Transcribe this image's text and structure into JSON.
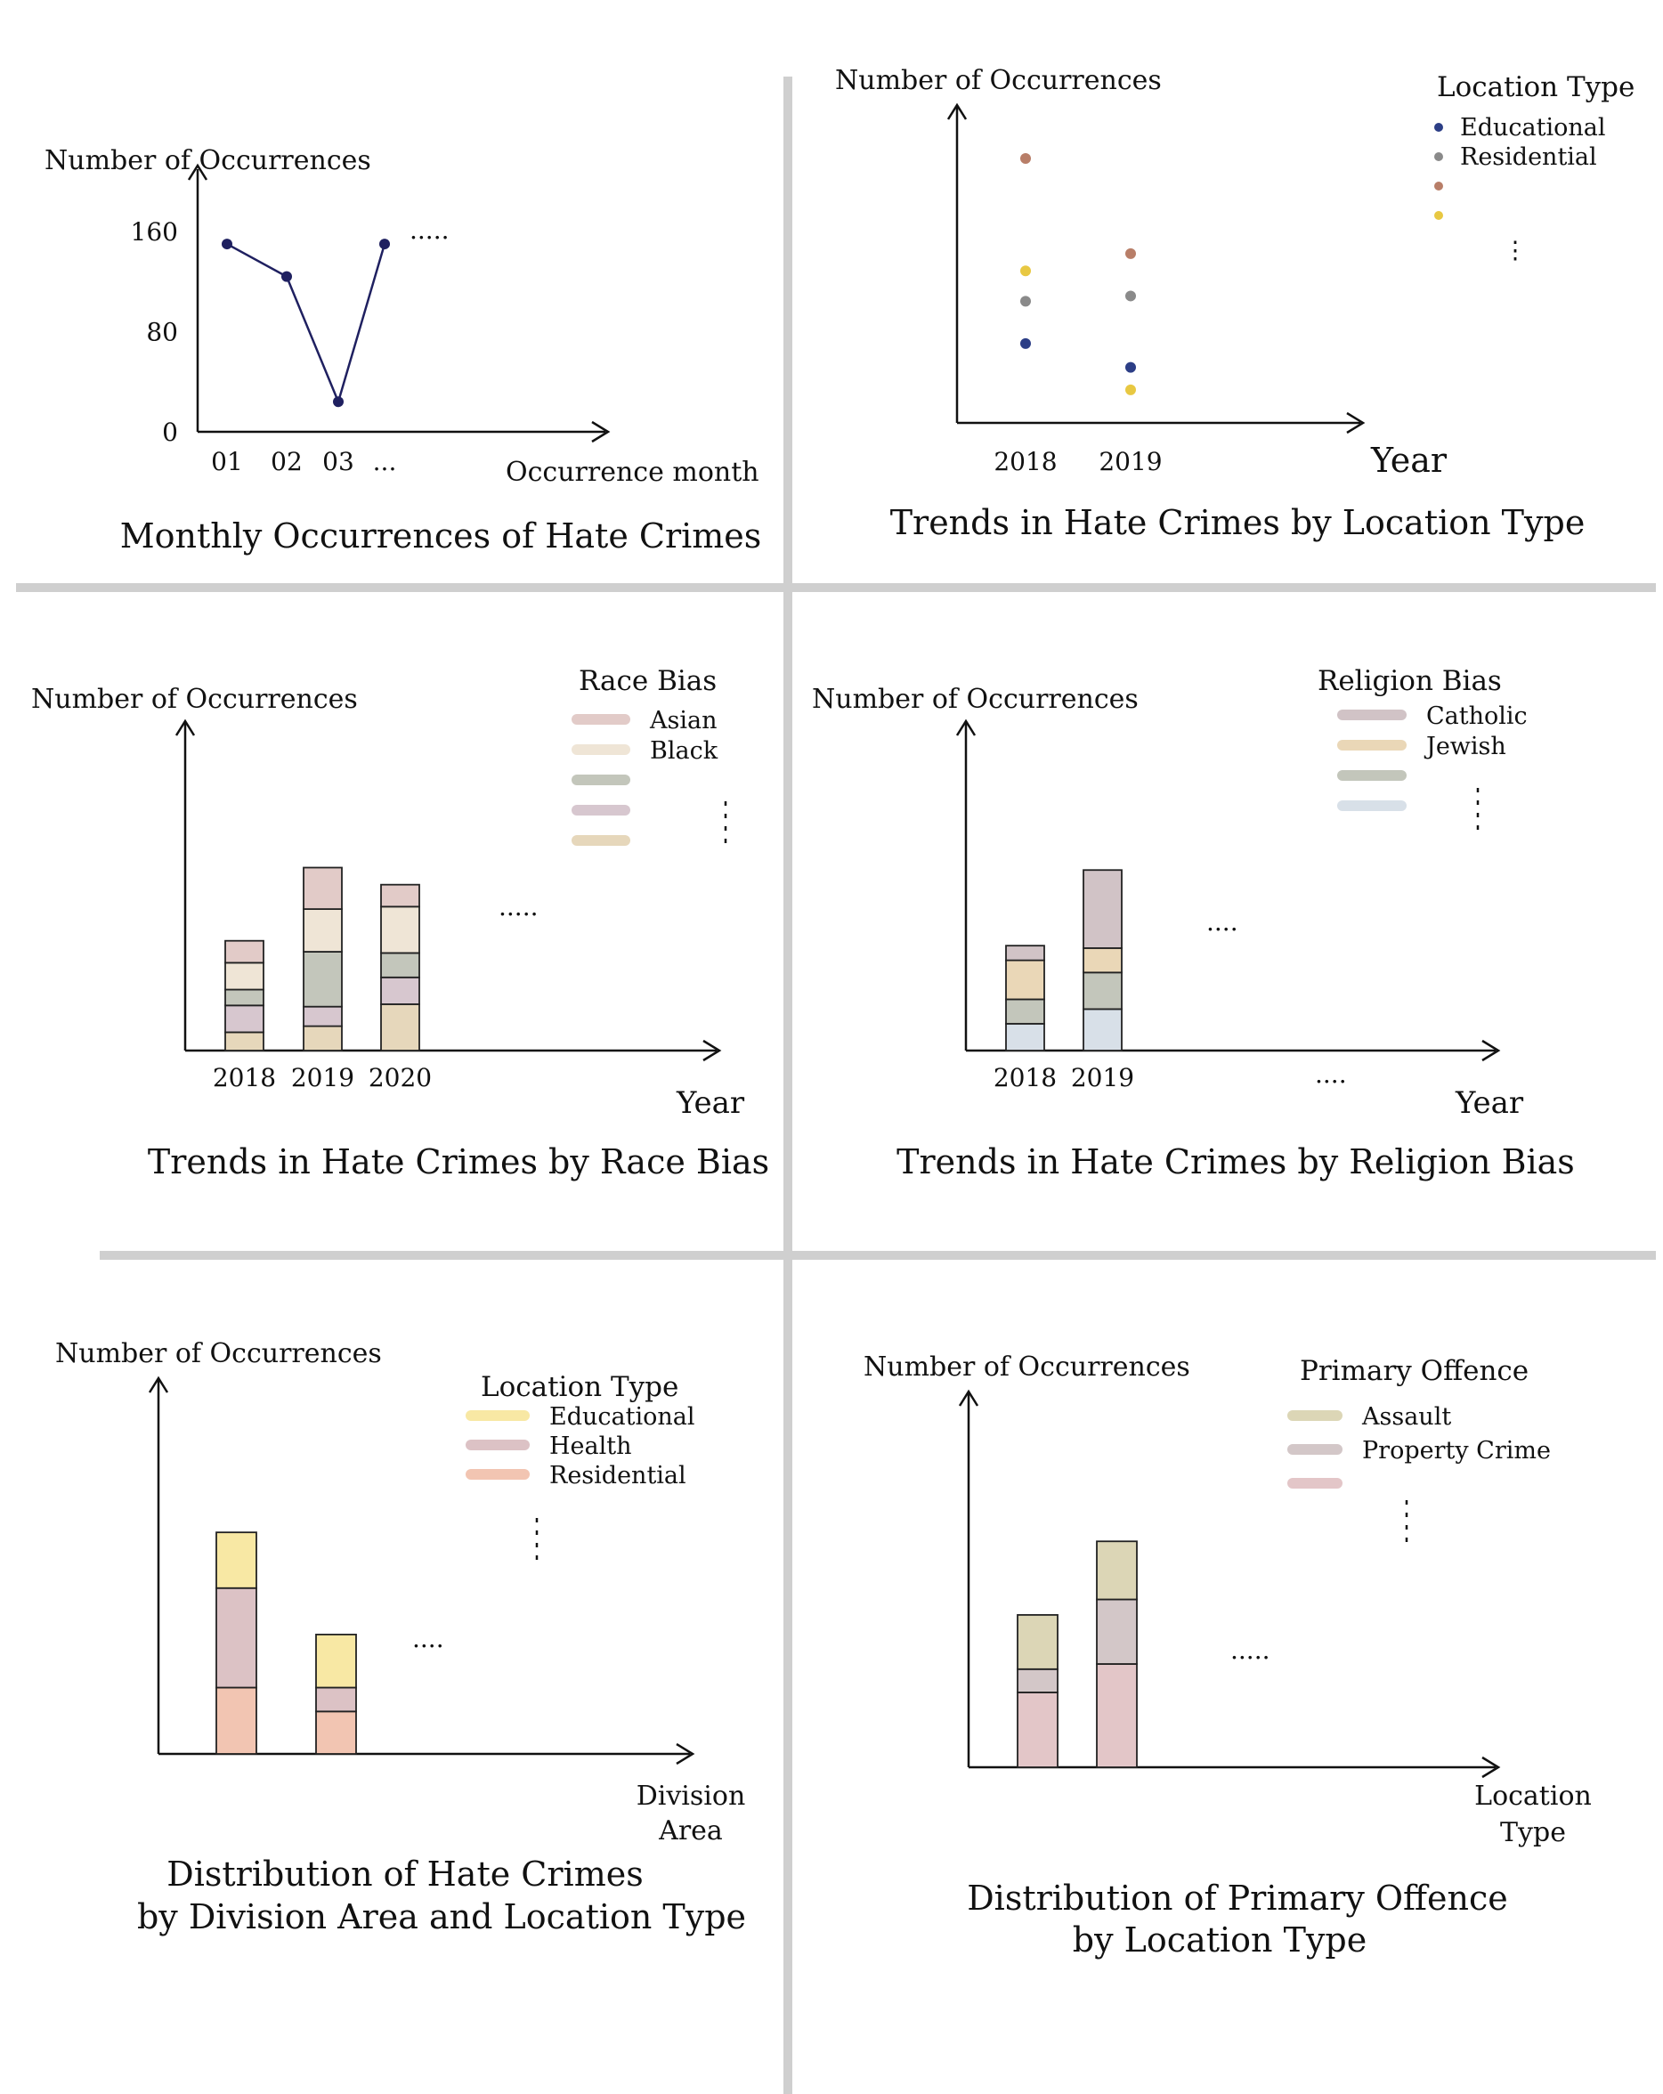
{
  "chart_data": [
    {
      "type": "line",
      "title": "Monthly Occurrences of Hate Crimes",
      "xlabel": "Occurrence month",
      "ylabel": "Number of Occurrences",
      "x": [
        "01",
        "02",
        "03",
        "..."
      ],
      "values": [
        150,
        124,
        24,
        150
      ],
      "yticks": [
        "0",
        "80",
        "160"
      ],
      "ylim": [
        0,
        180
      ],
      "color": "#1f2060",
      "continuation": "....."
    },
    {
      "type": "scatter",
      "title": "Trends in Hate Crimes by Location Type",
      "xlabel": "Year",
      "ylabel": "Number of Occurrences",
      "legend_title": "Location Type",
      "legend_position": "top-right",
      "categories": [
        "2018",
        "2019"
      ],
      "series": [
        {
          "name": "Educational",
          "color": "#2c3e86",
          "values": [
            60,
            42
          ]
        },
        {
          "name": "Residential",
          "color": "#8a8a8a",
          "values": [
            92,
            96
          ]
        },
        {
          "name": "",
          "color": "#b87e68",
          "values": [
            200,
            128
          ]
        },
        {
          "name": "",
          "color": "#e8c842",
          "values": [
            115,
            25
          ]
        }
      ],
      "ylim": [
        0,
        250
      ],
      "legend_more": "⋮"
    },
    {
      "type": "bar",
      "stacked": true,
      "title": "Trends in Hate Crimes by Race Bias",
      "xlabel": "Year",
      "ylabel": "Number of Occurrences",
      "legend_title": "Race Bias",
      "legend_position": "top-right",
      "categories": [
        "2018",
        "2019",
        "2020"
      ],
      "series": [
        {
          "name": "",
          "color": "#e6d7bb",
          "values": [
            15,
            20,
            38
          ]
        },
        {
          "name": "",
          "color": "#d7c7cf",
          "values": [
            22,
            16,
            22
          ]
        },
        {
          "name": "",
          "color": "#c3c6bb",
          "values": [
            13,
            45,
            20
          ]
        },
        {
          "name": "Black",
          "color": "#efe5d6",
          "values": [
            22,
            35,
            38
          ]
        },
        {
          "name": "Asian",
          "color": "#e2cbc8",
          "values": [
            18,
            34,
            18
          ]
        }
      ],
      "legend_order": [
        "Asian",
        "Black",
        "",
        "",
        ""
      ],
      "ylim": [
        0,
        160
      ],
      "continuation": "....."
    },
    {
      "type": "bar",
      "stacked": true,
      "title": "Trends in Hate Crimes by Religion Bias",
      "xlabel": "Year",
      "ylabel": "Number of Occurrences",
      "legend_title": "Religion Bias",
      "legend_position": "top-right",
      "categories": [
        "2018",
        "2019"
      ],
      "series": [
        {
          "name": "",
          "color": "#d8e0e8",
          "values": [
            22,
            34
          ]
        },
        {
          "name": "",
          "color": "#c3c6bb",
          "values": [
            20,
            30
          ]
        },
        {
          "name": "Jewish",
          "color": "#ead7b7",
          "values": [
            32,
            20
          ]
        },
        {
          "name": "Catholic",
          "color": "#d1c3c6",
          "values": [
            12,
            64
          ]
        }
      ],
      "legend_order": [
        "Catholic",
        "Jewish",
        "",
        ""
      ],
      "ylim": [
        0,
        160
      ],
      "continuation": "....",
      "continuation_tick": "...."
    },
    {
      "type": "bar",
      "stacked": true,
      "title": "Distribution of Hate Crimes by Division Area and Location Type",
      "title_lines": [
        "Distribution of Hate Crimes",
        "by Division Area and Location Type"
      ],
      "xlabel": "Division Area",
      "xlabel_lines": [
        "Division",
        "Area"
      ],
      "ylabel": "Number of Occurrences",
      "legend_title": "Location Type",
      "legend_position": "top-right",
      "categories": [
        "",
        ""
      ],
      "series": [
        {
          "name": "Residential",
          "color": "#f2c5b2",
          "values": [
            50,
            32
          ]
        },
        {
          "name": "Health",
          "color": "#dcc2c5",
          "values": [
            75,
            18
          ]
        },
        {
          "name": "Educational",
          "color": "#f8e8a4",
          "values": [
            42,
            40
          ]
        }
      ],
      "legend_order": [
        "Educational",
        "Health",
        "Residential"
      ],
      "ylim": [
        0,
        260
      ],
      "continuation": "...."
    },
    {
      "type": "bar",
      "stacked": true,
      "title": "Distribution of Primary Offence by Location Type",
      "title_lines": [
        "Distribution of Primary Offence",
        "by Location Type"
      ],
      "xlabel": "Location Type",
      "xlabel_lines": [
        "Location",
        "Type"
      ],
      "ylabel": "Number of Occurrences",
      "legend_title": "Primary Offence",
      "legend_position": "top-right",
      "categories": [
        "",
        ""
      ],
      "series": [
        {
          "name": "",
          "color": "#e3c6c8",
          "values": [
            58,
            80
          ]
        },
        {
          "name": "Property Crime",
          "color": "#d3c7c8",
          "values": [
            18,
            50
          ]
        },
        {
          "name": "Assault",
          "color": "#dcd6b6",
          "values": [
            42,
            45
          ]
        }
      ],
      "legend_order": [
        "Assault",
        "Property Crime",
        ""
      ],
      "ylim": [
        0,
        260
      ],
      "continuation": "....."
    }
  ]
}
